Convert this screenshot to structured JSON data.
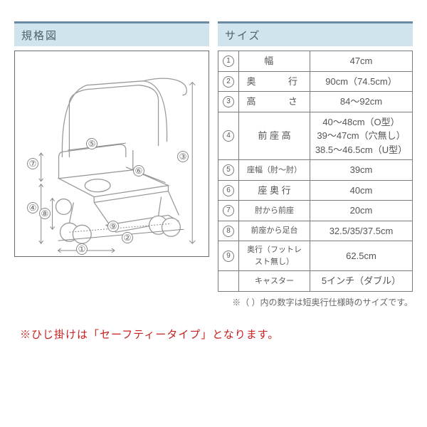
{
  "headers": {
    "diagram": "規格図",
    "size": "サイズ"
  },
  "labels": {
    "1": "①",
    "2": "②",
    "3": "③",
    "4": "④",
    "5": "⑤",
    "6": "⑥",
    "7": "⑦",
    "8": "⑧",
    "9": "⑨"
  },
  "rows": [
    {
      "n": "①",
      "label": "幅",
      "label_class": "sp-label-wide",
      "value": "47cm"
    },
    {
      "n": "②",
      "label": "奥　　行",
      "label_class": "sp-label",
      "value": "90cm（74.5cm）"
    },
    {
      "n": "③",
      "label": "高　　さ",
      "label_class": "sp-label",
      "value": "84～92cm"
    },
    {
      "n": "④",
      "label": "前 座 高",
      "label_class": "",
      "value": "40～48cm（O型）\n39～47cm（穴無し）\n38.5～46.5cm（U型）"
    },
    {
      "n": "⑤",
      "label": "座幅（肘～肘）",
      "label_class": "small",
      "value": "39cm"
    },
    {
      "n": "⑥",
      "label": "座 奥 行",
      "label_class": "",
      "value": "40cm"
    },
    {
      "n": "⑦",
      "label": "肘から前座",
      "label_class": "small",
      "value": "20cm"
    },
    {
      "n": "⑧",
      "label": "前座から足台",
      "label_class": "small",
      "value": "32.5/35/37.5cm"
    },
    {
      "n": "⑨",
      "label": "奥行（フットレスト無し）",
      "label_class": "small",
      "value": "62.5cm"
    },
    {
      "n": "",
      "label": "キャスター",
      "label_class": "small",
      "value": "5インチ（ダブル）"
    }
  ],
  "note": "※（ ）内の数字は短奥行仕様時のサイズです。",
  "footnote": "※ひじ掛けは「セーフティータイプ」となります。",
  "colors": {
    "header_bg": "#cfe4ec",
    "header_border": "#6b89a3",
    "text": "#5a5a5a",
    "border": "#7b7b7b",
    "accent_red": "#c72020"
  }
}
